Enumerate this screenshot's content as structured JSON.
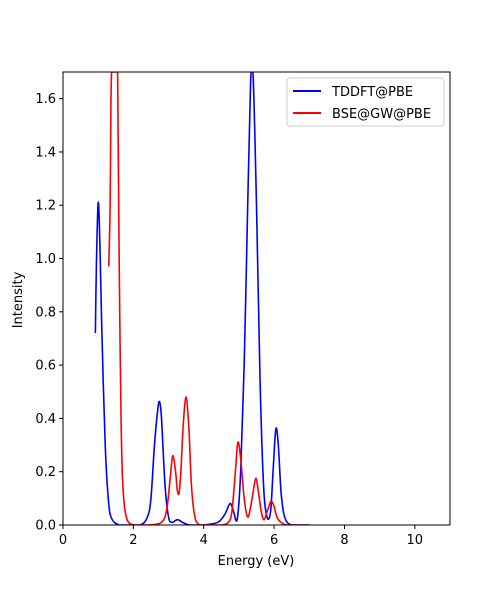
{
  "chart_data": {
    "type": "line",
    "title": "",
    "xlabel": "Energy (eV)",
    "ylabel": "Intensity",
    "xlim": [
      0,
      11
    ],
    "ylim": [
      0,
      1.7
    ],
    "xticks": [
      0,
      2,
      4,
      6,
      8,
      10
    ],
    "xtick_labels": [
      "0",
      "2",
      "4",
      "6",
      "8",
      "10"
    ],
    "yticks": [
      0.0,
      0.2,
      0.4,
      0.6,
      0.8,
      1.0,
      1.2,
      1.4,
      1.6
    ],
    "ytick_labels": [
      "0.0",
      "0.2",
      "0.4",
      "0.6",
      "0.8",
      "1.0",
      "1.2",
      "1.4",
      "1.6"
    ],
    "grid": false,
    "legend_position": "top-right",
    "series": [
      {
        "name": "TDDFT@PBE",
        "color": "#0000ff",
        "x": [
          0.92,
          0.95,
          1.0,
          1.05,
          1.1,
          1.2,
          1.3,
          1.4,
          1.6,
          1.8,
          2.2,
          2.4,
          2.5,
          2.6,
          2.7,
          2.75,
          2.8,
          2.9,
          3.0,
          3.1,
          3.25,
          3.4,
          3.6,
          4.0,
          4.4,
          4.6,
          4.7,
          4.77,
          4.85,
          4.95,
          5.05,
          5.15,
          5.25,
          5.33,
          5.4,
          5.5,
          5.6,
          5.7,
          5.8,
          5.9,
          5.97,
          6.05,
          6.12,
          6.2,
          6.3,
          6.5,
          7.0
        ],
        "y": [
          0.72,
          0.98,
          1.21,
          1.05,
          0.75,
          0.3,
          0.08,
          0.02,
          0.0,
          0.0,
          0.0,
          0.03,
          0.1,
          0.3,
          0.44,
          0.46,
          0.4,
          0.15,
          0.03,
          0.01,
          0.02,
          0.01,
          0.0,
          0.0,
          0.01,
          0.04,
          0.07,
          0.08,
          0.05,
          0.02,
          0.2,
          0.6,
          1.2,
          1.65,
          1.7,
          1.2,
          0.55,
          0.15,
          0.03,
          0.05,
          0.2,
          0.36,
          0.3,
          0.12,
          0.03,
          0.0,
          0.0
        ]
      },
      {
        "name": "BSE@GW@PBE",
        "color": "#ff0000",
        "x": [
          1.3,
          1.34,
          1.36,
          1.38,
          1.4,
          1.45,
          1.5,
          1.55,
          1.57,
          1.6,
          1.65,
          1.7,
          1.8,
          2.0,
          2.4,
          2.8,
          2.95,
          3.05,
          3.12,
          3.2,
          3.25,
          3.3,
          3.35,
          3.42,
          3.5,
          3.58,
          3.65,
          3.75,
          3.9,
          4.2,
          4.5,
          4.7,
          4.8,
          4.9,
          4.97,
          5.05,
          5.15,
          5.25,
          5.35,
          5.45,
          5.5,
          5.58,
          5.65,
          5.72,
          5.8,
          5.88,
          5.92,
          6.0,
          6.08,
          6.2,
          6.4,
          7.0
        ],
        "y": [
          0.97,
          1.2,
          1.55,
          1.7,
          1.7,
          1.7,
          1.7,
          1.7,
          1.4,
          0.95,
          0.4,
          0.15,
          0.03,
          0.0,
          0.0,
          0.01,
          0.06,
          0.18,
          0.26,
          0.2,
          0.13,
          0.12,
          0.2,
          0.38,
          0.48,
          0.36,
          0.15,
          0.03,
          0.0,
          0.0,
          0.0,
          0.01,
          0.05,
          0.2,
          0.31,
          0.25,
          0.1,
          0.03,
          0.08,
          0.16,
          0.17,
          0.1,
          0.04,
          0.02,
          0.05,
          0.08,
          0.09,
          0.07,
          0.03,
          0.01,
          0.0,
          0.0
        ]
      }
    ]
  }
}
